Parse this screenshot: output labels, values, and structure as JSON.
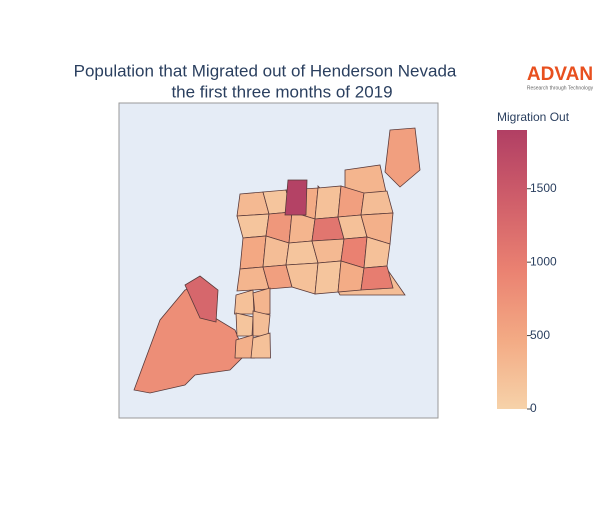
{
  "chart_data": {
    "type": "choropleth",
    "title": [
      "Population that Migrated out of Henderson Nevada",
      "the first three months of 2019"
    ],
    "logo": {
      "name": "ADVAN",
      "tagline": "Research through Technology"
    },
    "colorbar": {
      "title": "Migration Out",
      "lim": [
        0,
        1900
      ],
      "ticks": [
        0,
        500,
        1000,
        1500
      ],
      "colorscale": [
        "#f6d2a9",
        "#f3aa84",
        "#ea8171",
        "#cf5e6a",
        "#b13f64"
      ]
    },
    "values": [
      800,
      600,
      350,
      250,
      300,
      150,
      450,
      200,
      600,
      250,
      150,
      700,
      350,
      1100,
      200,
      400,
      500,
      250,
      150,
      300,
      950,
      200,
      350,
      600,
      200,
      150,
      450,
      1000,
      200,
      350,
      150,
      250,
      400,
      200,
      1300,
      1850
    ]
  }
}
